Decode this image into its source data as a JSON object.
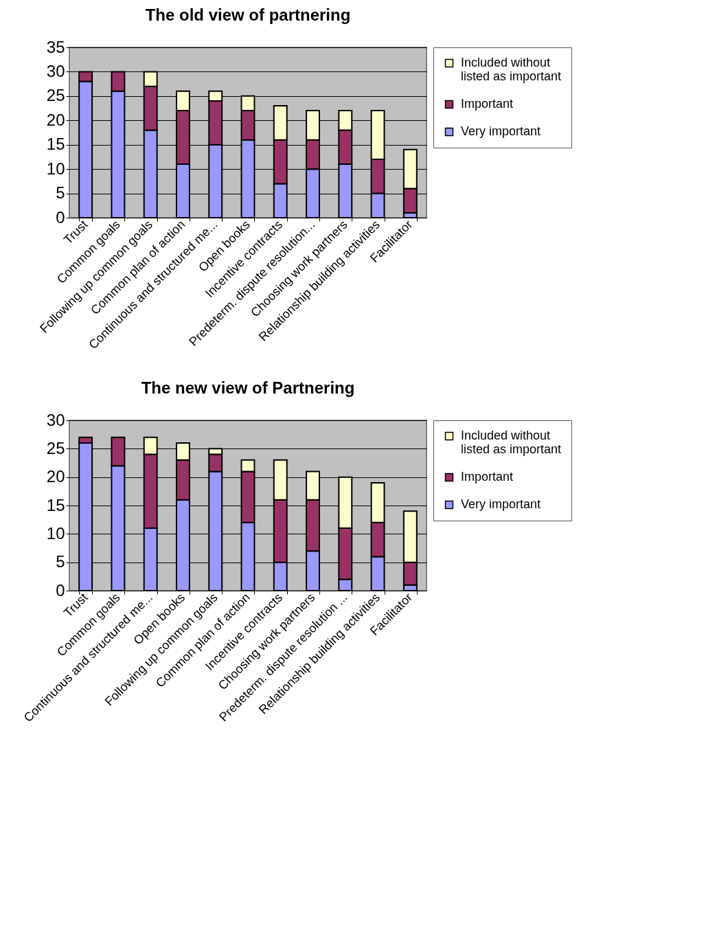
{
  "chart_data": [
    {
      "type": "bar",
      "title": "The old view of partnering",
      "stacked": true,
      "legend": "top right",
      "grid": "y",
      "categories": [
        "Trust",
        "Common goals",
        "Following up common goals",
        "Common plan of action",
        "Continuous and structured me...",
        "Open books",
        "Incentive contracts",
        "Predeterm. dispute resolution...",
        "Choosing work partners",
        "Relationship building activities",
        "Facilitator"
      ],
      "ylim": [
        0,
        35
      ],
      "yticks": [
        0,
        5,
        10,
        15,
        20,
        25,
        30,
        35
      ],
      "series": [
        {
          "name": "Very important",
          "color": "#9999ff",
          "values": [
            28,
            26,
            18,
            11,
            15,
            16,
            7,
            10,
            11,
            5,
            1
          ]
        },
        {
          "name": "Important",
          "color": "#993366",
          "values": [
            2,
            4,
            9,
            11,
            9,
            6,
            9,
            6,
            7,
            7,
            5
          ]
        },
        {
          "name": "Included without listed as important",
          "color": "#ffffcc",
          "values": [
            0,
            0,
            3,
            4,
            2,
            3,
            7,
            6,
            4,
            10,
            8
          ]
        }
      ]
    },
    {
      "type": "bar",
      "title": "The new view of Partnering",
      "stacked": true,
      "legend": "top right",
      "grid": "y",
      "categories": [
        "Trust",
        "Common goals",
        "Continuous and structured me...",
        "Open books",
        "Following up common goals",
        "Common plan of action",
        "Incentive contracts",
        "Choosing work partners",
        "Predeterm. dispute resolution ...",
        "Relationship building activities",
        "Facilitator"
      ],
      "ylim": [
        0,
        30
      ],
      "yticks": [
        0,
        5,
        10,
        15,
        20,
        25,
        30
      ],
      "series": [
        {
          "name": "Very important",
          "color": "#9999ff",
          "values": [
            26,
            22,
            11,
            16,
            21,
            12,
            5,
            7,
            2,
            6,
            1
          ]
        },
        {
          "name": "Important",
          "color": "#993366",
          "values": [
            1,
            5,
            13,
            7,
            3,
            9,
            11,
            9,
            9,
            6,
            4
          ]
        },
        {
          "name": "Included without listed as important",
          "color": "#ffffcc",
          "values": [
            0,
            0,
            3,
            3,
            1,
            2,
            7,
            5,
            9,
            7,
            9
          ]
        }
      ]
    }
  ]
}
